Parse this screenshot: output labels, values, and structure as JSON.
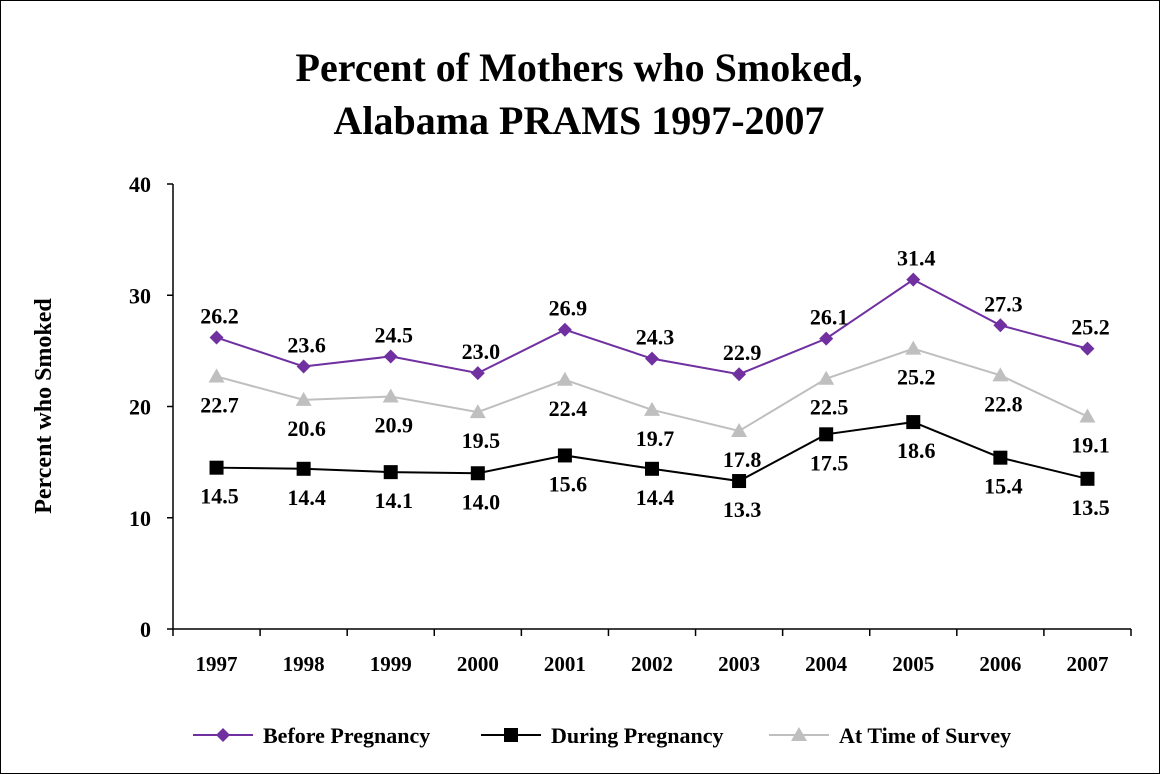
{
  "chart_data": {
    "type": "line",
    "title": "Percent of Mothers who Smoked,",
    "subtitle": "Alabama PRAMS 1997-2007",
    "xlabel": "",
    "ylabel": "Percent who Smoked",
    "ylim": [
      0,
      40
    ],
    "yticks": [
      "0",
      "10",
      "20",
      "30",
      "40"
    ],
    "categories": [
      "1997",
      "1998",
      "1999",
      "2000",
      "2001",
      "2002",
      "2003",
      "2004",
      "2005",
      "2006",
      "2007"
    ],
    "grid": false,
    "legend_position": "bottom",
    "series": [
      {
        "name": "Before Pregnancy",
        "color": "#7030A0",
        "marker": "diamond",
        "values": [
          26.2,
          23.6,
          24.5,
          23.0,
          26.9,
          24.3,
          22.9,
          26.1,
          31.4,
          27.3,
          25.2
        ],
        "labels": [
          "26.2",
          "23.6",
          "24.5",
          "23.0",
          "26.9",
          "24.3",
          "22.9",
          "26.1",
          "31.4",
          "27.3",
          "25.2"
        ],
        "label_position": "above"
      },
      {
        "name": "During Pregnancy",
        "color": "#000000",
        "marker": "square",
        "values": [
          14.5,
          14.4,
          14.1,
          14.0,
          15.6,
          14.4,
          13.3,
          17.5,
          18.6,
          15.4,
          13.5
        ],
        "labels": [
          "14.5",
          "14.4",
          "14.1",
          "14.0",
          "15.6",
          "14.4",
          "13.3",
          "17.5",
          "18.6",
          "15.4",
          "13.5"
        ],
        "label_position": "below"
      },
      {
        "name": "At Time of Survey",
        "color": "#BFBFBF",
        "marker": "triangle",
        "values": [
          22.7,
          20.6,
          20.9,
          19.5,
          22.4,
          19.7,
          17.8,
          22.5,
          25.2,
          22.8,
          19.1
        ],
        "labels": [
          "22.7",
          "20.6",
          "20.9",
          "19.5",
          "22.4",
          "19.7",
          "17.8",
          "22.5",
          "25.2",
          "22.8",
          "19.1"
        ],
        "label_position": "below"
      }
    ]
  }
}
